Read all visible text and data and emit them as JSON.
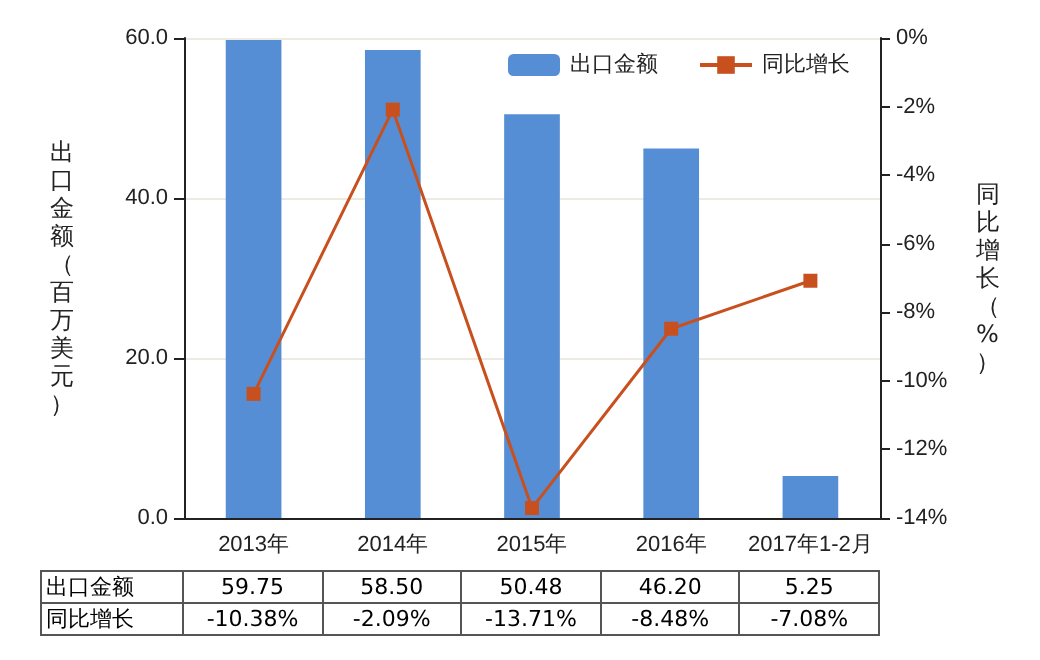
{
  "chart_data": {
    "type": "bar",
    "categories": [
      "2013年",
      "2014年",
      "2015年",
      "2016年",
      "2017年1-2月"
    ],
    "series": [
      {
        "name": "出口金额",
        "color": "#558ed5",
        "values": [
          59.75,
          58.5,
          50.48,
          46.2,
          5.25
        ],
        "value_labels": [
          "59.75",
          "58.50",
          "50.48",
          "46.20",
          "5.25"
        ]
      },
      {
        "name": "同比增长",
        "type": "line",
        "axis": "y2",
        "color": "#c8501e",
        "values": [
          -10.38,
          -2.09,
          -13.71,
          -8.48,
          -7.08
        ],
        "value_labels": [
          "-10.38%",
          "-2.09%",
          "-13.71%",
          "-8.48%",
          "-7.08%"
        ]
      }
    ],
    "ylabel": "出口金额（百万美元）",
    "y2label": "同比增长（%）",
    "ylim": [
      0,
      60
    ],
    "yticks": [
      {
        "value": 0,
        "label": "0.0"
      },
      {
        "value": 20,
        "label": "20.0"
      },
      {
        "value": 40,
        "label": "40.0"
      },
      {
        "value": 60,
        "label": "60.0"
      }
    ],
    "y2lim": [
      -14,
      0
    ],
    "y2ticks": [
      {
        "value": -14,
        "label": "-14%"
      },
      {
        "value": -12,
        "label": "-12%"
      },
      {
        "value": -10,
        "label": "-10%"
      },
      {
        "value": -8,
        "label": "-8%"
      },
      {
        "value": -6,
        "label": "-6%"
      },
      {
        "value": -4,
        "label": "-4%"
      },
      {
        "value": -2,
        "label": "-2%"
      },
      {
        "value": 0,
        "label": "0%"
      }
    ],
    "grid": "y",
    "legend": "top right",
    "marker": "square"
  }
}
